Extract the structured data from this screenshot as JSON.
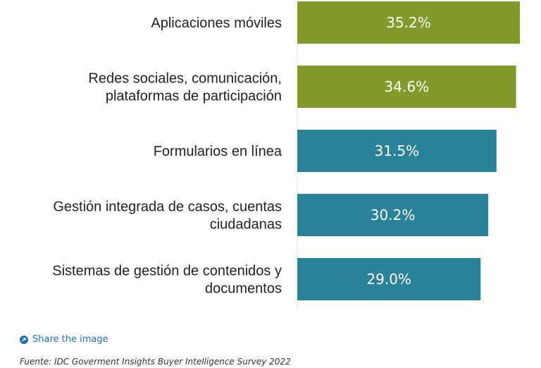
{
  "chart_data": {
    "type": "bar",
    "orientation": "horizontal",
    "categories": [
      [
        "Aplicaciones móviles"
      ],
      [
        "Redes sociales, comunicación,",
        "plataformas de participación"
      ],
      [
        "Formularios en línea"
      ],
      [
        "Gestión integrada de casos, cuentas",
        "ciudadanas"
      ],
      [
        "Sistemas de gestión de contenidos y",
        "documentos"
      ]
    ],
    "values": [
      35.2,
      34.6,
      31.5,
      30.2,
      29.0
    ],
    "value_labels": [
      "35.2%",
      "34.6%",
      "31.5%",
      "30.2%",
      "29.0%"
    ],
    "bar_colors": [
      "#839a2a",
      "#839a2a",
      "#2a8298",
      "#2a8298",
      "#2a8298"
    ],
    "xlim": [
      0,
      35.2
    ],
    "title": "",
    "xlabel": "",
    "ylabel": ""
  },
  "footer": {
    "share_label": "Share the image",
    "source": "Fuente: IDC Goverment Insights Buyer Intelligence Survey 2022"
  }
}
